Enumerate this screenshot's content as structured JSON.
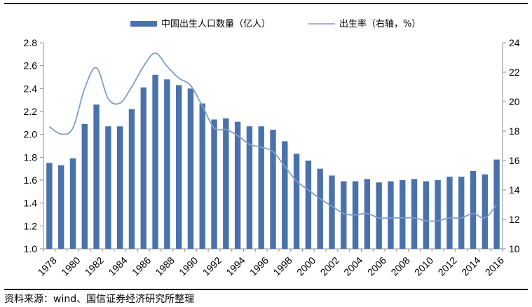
{
  "chart_data": {
    "type": "bar",
    "categories": [
      "1978",
      "1979",
      "1980",
      "1981",
      "1982",
      "1983",
      "1984",
      "1985",
      "1986",
      "1987",
      "1988",
      "1989",
      "1990",
      "1991",
      "1992",
      "1993",
      "1994",
      "1995",
      "1996",
      "1997",
      "1998",
      "1999",
      "2000",
      "2001",
      "2002",
      "2003",
      "2004",
      "2005",
      "2006",
      "2007",
      "2008",
      "2009",
      "2010",
      "2011",
      "2012",
      "2013",
      "2014",
      "2015",
      "2016"
    ],
    "x_tick_labels": [
      "1978",
      "1980",
      "1982",
      "1984",
      "1986",
      "1988",
      "1990",
      "1992",
      "1994",
      "1996",
      "1998",
      "2000",
      "2002",
      "2004",
      "2006",
      "2008",
      "2010",
      "2012",
      "2014",
      "2016"
    ],
    "series": [
      {
        "name": "中国出生人口数量（亿人）",
        "type": "bar",
        "axis": "left",
        "color": "#4a72aa",
        "values": [
          1.75,
          1.73,
          1.79,
          2.09,
          2.26,
          2.07,
          2.07,
          2.22,
          2.41,
          2.52,
          2.48,
          2.43,
          2.4,
          2.27,
          2.13,
          2.14,
          2.11,
          2.07,
          2.07,
          2.04,
          1.94,
          1.83,
          1.77,
          1.7,
          1.64,
          1.59,
          1.59,
          1.61,
          1.58,
          1.59,
          1.6,
          1.61,
          1.59,
          1.6,
          1.63,
          1.63,
          1.68,
          1.65,
          1.78
        ]
      },
      {
        "name": "出生率（右轴，%）",
        "type": "line",
        "axis": "right",
        "color": "#7f9ccc",
        "values": [
          18.3,
          17.8,
          18.2,
          20.9,
          22.3,
          20.2,
          19.9,
          21.0,
          22.4,
          23.3,
          22.4,
          21.6,
          21.1,
          19.7,
          18.2,
          18.1,
          17.7,
          17.1,
          16.9,
          16.6,
          15.6,
          14.6,
          14.0,
          13.4,
          12.9,
          12.4,
          12.3,
          12.4,
          12.1,
          12.1,
          12.1,
          12.1,
          11.9,
          11.9,
          12.1,
          12.1,
          12.4,
          12.1,
          13.0
        ]
      }
    ],
    "y_left": {
      "ylim": [
        1.0,
        2.8
      ],
      "ticks": [
        "1.0",
        "1.2",
        "1.4",
        "1.6",
        "1.8",
        "2.0",
        "2.2",
        "2.4",
        "2.6",
        "2.8"
      ]
    },
    "y_right": {
      "ylim": [
        10,
        24
      ],
      "ticks": [
        "10",
        "12",
        "14",
        "16",
        "18",
        "20",
        "22",
        "24"
      ]
    },
    "grid": false,
    "legend_position": "top",
    "title": "",
    "xlabel": "",
    "ylabel": ""
  },
  "legend": {
    "bar_label": "中国出生人口数量（亿人）",
    "line_label": "出生率（右轴，%）"
  },
  "source": "资料来源：wind、国信证券经济研究所整理"
}
